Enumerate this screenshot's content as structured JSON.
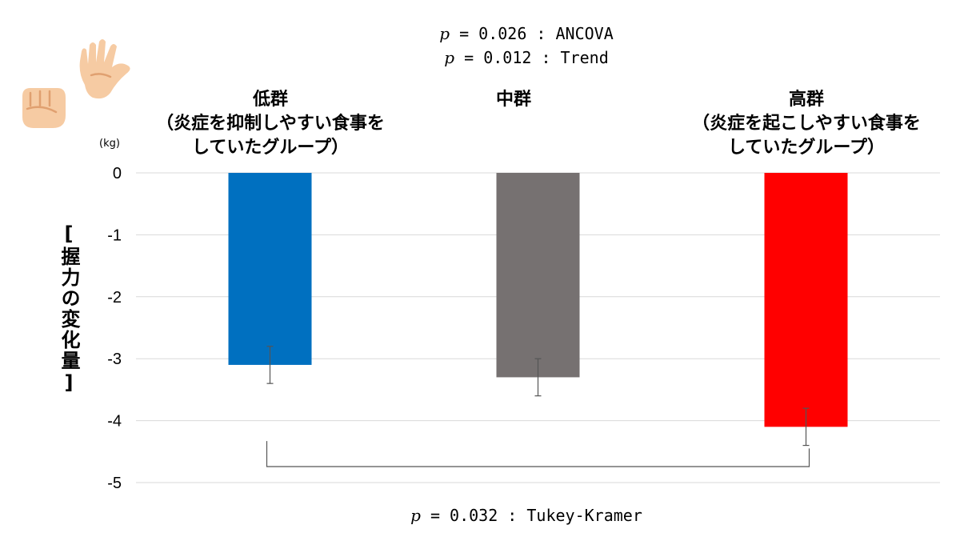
{
  "stats_top": {
    "p_symbol": "p",
    "line1": " = 0.026 : ANCOVA",
    "line2": " = 0.012 : Trend"
  },
  "stats_bottom": {
    "p_symbol": "p",
    "text": " = 0.032 : Tukey-Kramer"
  },
  "groups": [
    {
      "title": "低群",
      "line2": "（炎症を抑制しやすい食事を",
      "line3": "していたグループ）"
    },
    {
      "title": "中群",
      "line2": "",
      "line3": ""
    },
    {
      "title": "高群",
      "line2": "（炎症を起こしやすい食事を",
      "line3": "していたグループ）"
    }
  ],
  "unit_label": "(kg)",
  "y_axis_label": "[握力の変化量]",
  "icons": [
    "fist-icon",
    "open-hand-icon"
  ],
  "colors": {
    "low": "#0070c0",
    "mid": "#767171",
    "high": "#ff0000",
    "grid": "#d9d9d9"
  },
  "chart_data": {
    "type": "bar",
    "categories": [
      "低群",
      "中群",
      "高群"
    ],
    "values": [
      -3.1,
      -3.3,
      -4.1
    ],
    "error_bars": [
      0.3,
      0.3,
      0.3
    ],
    "ylim": [
      -5,
      0
    ],
    "yticks": [
      0,
      -1,
      -2,
      -3,
      -4,
      -5
    ],
    "ylabel": "[握力の変化量]",
    "xlabel": "",
    "grid": true,
    "comparison": {
      "from": "低群",
      "to": "高群",
      "label": "p = 0.032 : Tukey-Kramer"
    }
  }
}
